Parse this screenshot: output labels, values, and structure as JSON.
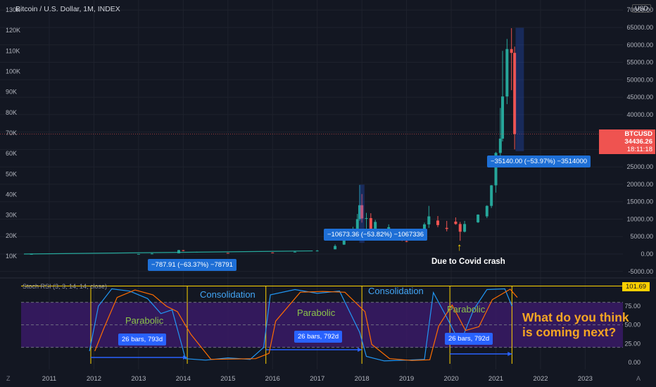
{
  "header": {
    "title": "Bitcoin / U.S. Dollar, 1M, INDEX",
    "currency": "USD"
  },
  "colors": {
    "background": "#131722",
    "up": "#26a69a",
    "down": "#ef5350",
    "grid": "#1e222d",
    "accent_blue": "#2962ff",
    "stoch_k": "#2196f3",
    "stoch_d": "#ff6d00",
    "rsi_band": "#3a1a66",
    "yellow": "#ffd400",
    "orange_text": "#f5a623"
  },
  "timezone_icon": "Z",
  "auto_scale": "A",
  "price_tag": {
    "symbol": "BTCUSD",
    "price": "34436.26",
    "countdown": "18:11:18"
  },
  "rsi_value_tag": "101.69",
  "annotations": {
    "callout_2014": "−787.91 (−63.37%) −78791",
    "callout_2018": "−10673.36 (−53.82%) −1067336",
    "callout_2021": "−35140.00 (−53.97%) −3514000",
    "covid_text": "Due to Covid crash",
    "covid_arrow": "↑",
    "question": "What do you think is coming next?"
  },
  "rsi_panel": {
    "title": "Stoch RSI (3, 3, 14, 14, close)",
    "labels": {
      "parabolic_1": "Parabolic",
      "parabolic_2": "Parabolic",
      "parabolic_3": "Parabolic",
      "consolidation_1": "Consolidation",
      "consolidation_2": "Consolidation",
      "bars_1": "26 bars, 793d",
      "bars_2": "26 bars, 792d",
      "bars_3": "26 bars, 792d"
    }
  },
  "chart_data": {
    "type": "candlestick",
    "title": "Bitcoin / U.S. Dollar, 1M, INDEX",
    "x_axis": {
      "ticks": [
        "2011",
        "2012",
        "2013",
        "2014",
        "2015",
        "2016",
        "2017",
        "2018",
        "2019",
        "2020",
        "2021",
        "2022",
        "2023"
      ],
      "range": [
        2010.4,
        2023.9
      ]
    },
    "left_axis": {
      "ticks": [
        "10K",
        "20K",
        "30K",
        "40K",
        "50K",
        "60K",
        "70K",
        "80K",
        "90K",
        "100K",
        "110K",
        "120K",
        "130K"
      ]
    },
    "right_axis": {
      "ticks": [
        "-5000.00",
        "0.00",
        "5000.00",
        "10000.00",
        "15000.00",
        "20000.00",
        "25000.00",
        "30000.00",
        "35000.00",
        "40000.00",
        "45000.00",
        "50000.00",
        "55000.00",
        "60000.00",
        "65000.00",
        "70000.00"
      ],
      "range": [
        -5000,
        70000
      ]
    },
    "monthly_ohlc_approx": [
      {
        "t": 2010.6,
        "o": 0,
        "h": 0,
        "l": 0,
        "c": 0
      },
      {
        "t": 2013.0,
        "o": 13,
        "h": 20,
        "l": 13,
        "c": 20
      },
      {
        "t": 2013.3,
        "o": 100,
        "h": 260,
        "l": 70,
        "c": 130
      },
      {
        "t": 2013.9,
        "o": 200,
        "h": 1200,
        "l": 200,
        "c": 1100
      },
      {
        "t": 2014.0,
        "o": 1100,
        "h": 1150,
        "l": 800,
        "c": 950
      },
      {
        "t": 2014.3,
        "o": 600,
        "h": 650,
        "l": 450,
        "c": 600
      },
      {
        "t": 2015.0,
        "o": 320,
        "h": 320,
        "l": 170,
        "c": 220
      },
      {
        "t": 2016.0,
        "o": 430,
        "h": 460,
        "l": 360,
        "c": 370
      },
      {
        "t": 2016.5,
        "o": 600,
        "h": 780,
        "l": 530,
        "c": 650
      },
      {
        "t": 2017.0,
        "o": 960,
        "h": 1150,
        "l": 750,
        "c": 970
      },
      {
        "t": 2017.4,
        "o": 1350,
        "h": 2760,
        "l": 1350,
        "c": 2300
      },
      {
        "t": 2017.6,
        "o": 2700,
        "h": 4800,
        "l": 2600,
        "c": 4700
      },
      {
        "t": 2017.8,
        "o": 4400,
        "h": 7800,
        "l": 4200,
        "c": 6400
      },
      {
        "t": 2017.9,
        "o": 6400,
        "h": 11500,
        "l": 5500,
        "c": 10000
      },
      {
        "t": 2017.95,
        "o": 10000,
        "h": 19800,
        "l": 9500,
        "c": 14000
      },
      {
        "t": 2018.0,
        "o": 14000,
        "h": 17200,
        "l": 9000,
        "c": 10200
      },
      {
        "t": 2018.1,
        "o": 10200,
        "h": 11800,
        "l": 6000,
        "c": 10300
      },
      {
        "t": 2018.2,
        "o": 10300,
        "h": 11700,
        "l": 6500,
        "c": 6900
      },
      {
        "t": 2018.3,
        "o": 6900,
        "h": 9800,
        "l": 6500,
        "c": 9200
      },
      {
        "t": 2018.6,
        "o": 6300,
        "h": 8500,
        "l": 5800,
        "c": 7700
      },
      {
        "t": 2018.9,
        "o": 6300,
        "h": 6600,
        "l": 3700,
        "c": 4000
      },
      {
        "t": 2019.0,
        "o": 3700,
        "h": 4100,
        "l": 3400,
        "c": 3500
      },
      {
        "t": 2019.4,
        "o": 5300,
        "h": 9000,
        "l": 5300,
        "c": 8500
      },
      {
        "t": 2019.5,
        "o": 8500,
        "h": 13800,
        "l": 7500,
        "c": 10800
      },
      {
        "t": 2019.7,
        "o": 9600,
        "h": 10900,
        "l": 7700,
        "c": 8300
      },
      {
        "t": 2019.9,
        "o": 7500,
        "h": 9500,
        "l": 6500,
        "c": 7200
      },
      {
        "t": 2020.1,
        "o": 9300,
        "h": 10500,
        "l": 8400,
        "c": 8600
      },
      {
        "t": 2020.2,
        "o": 8600,
        "h": 9200,
        "l": 3800,
        "c": 6400
      },
      {
        "t": 2020.3,
        "o": 6400,
        "h": 9500,
        "l": 6200,
        "c": 8600
      },
      {
        "t": 2020.6,
        "o": 9100,
        "h": 11400,
        "l": 8900,
        "c": 11300
      },
      {
        "t": 2020.8,
        "o": 10800,
        "h": 14000,
        "l": 10300,
        "c": 13800
      },
      {
        "t": 2020.9,
        "o": 13800,
        "h": 19800,
        "l": 13200,
        "c": 19700
      },
      {
        "t": 2021.0,
        "o": 19700,
        "h": 29300,
        "l": 17600,
        "c": 29000
      },
      {
        "t": 2021.1,
        "o": 29000,
        "h": 41900,
        "l": 28100,
        "c": 33100
      },
      {
        "t": 2021.15,
        "o": 33100,
        "h": 58300,
        "l": 32300,
        "c": 45200
      },
      {
        "t": 2021.25,
        "o": 45200,
        "h": 61700,
        "l": 43000,
        "c": 58800
      },
      {
        "t": 2021.35,
        "o": 58800,
        "h": 64800,
        "l": 47000,
        "c": 57700
      },
      {
        "t": 2021.42,
        "o": 57700,
        "h": 59500,
        "l": 30000,
        "c": 34400
      }
    ],
    "current_price": 34436.26,
    "stoch_rsi": {
      "name": "Stoch RSI (3, 3, 14, 14, close)",
      "levels": [
        0,
        25,
        50,
        75,
        101.69
      ],
      "axis_ticks": [
        "0.00",
        "25.00",
        "50.00",
        "75.00"
      ]
    }
  }
}
